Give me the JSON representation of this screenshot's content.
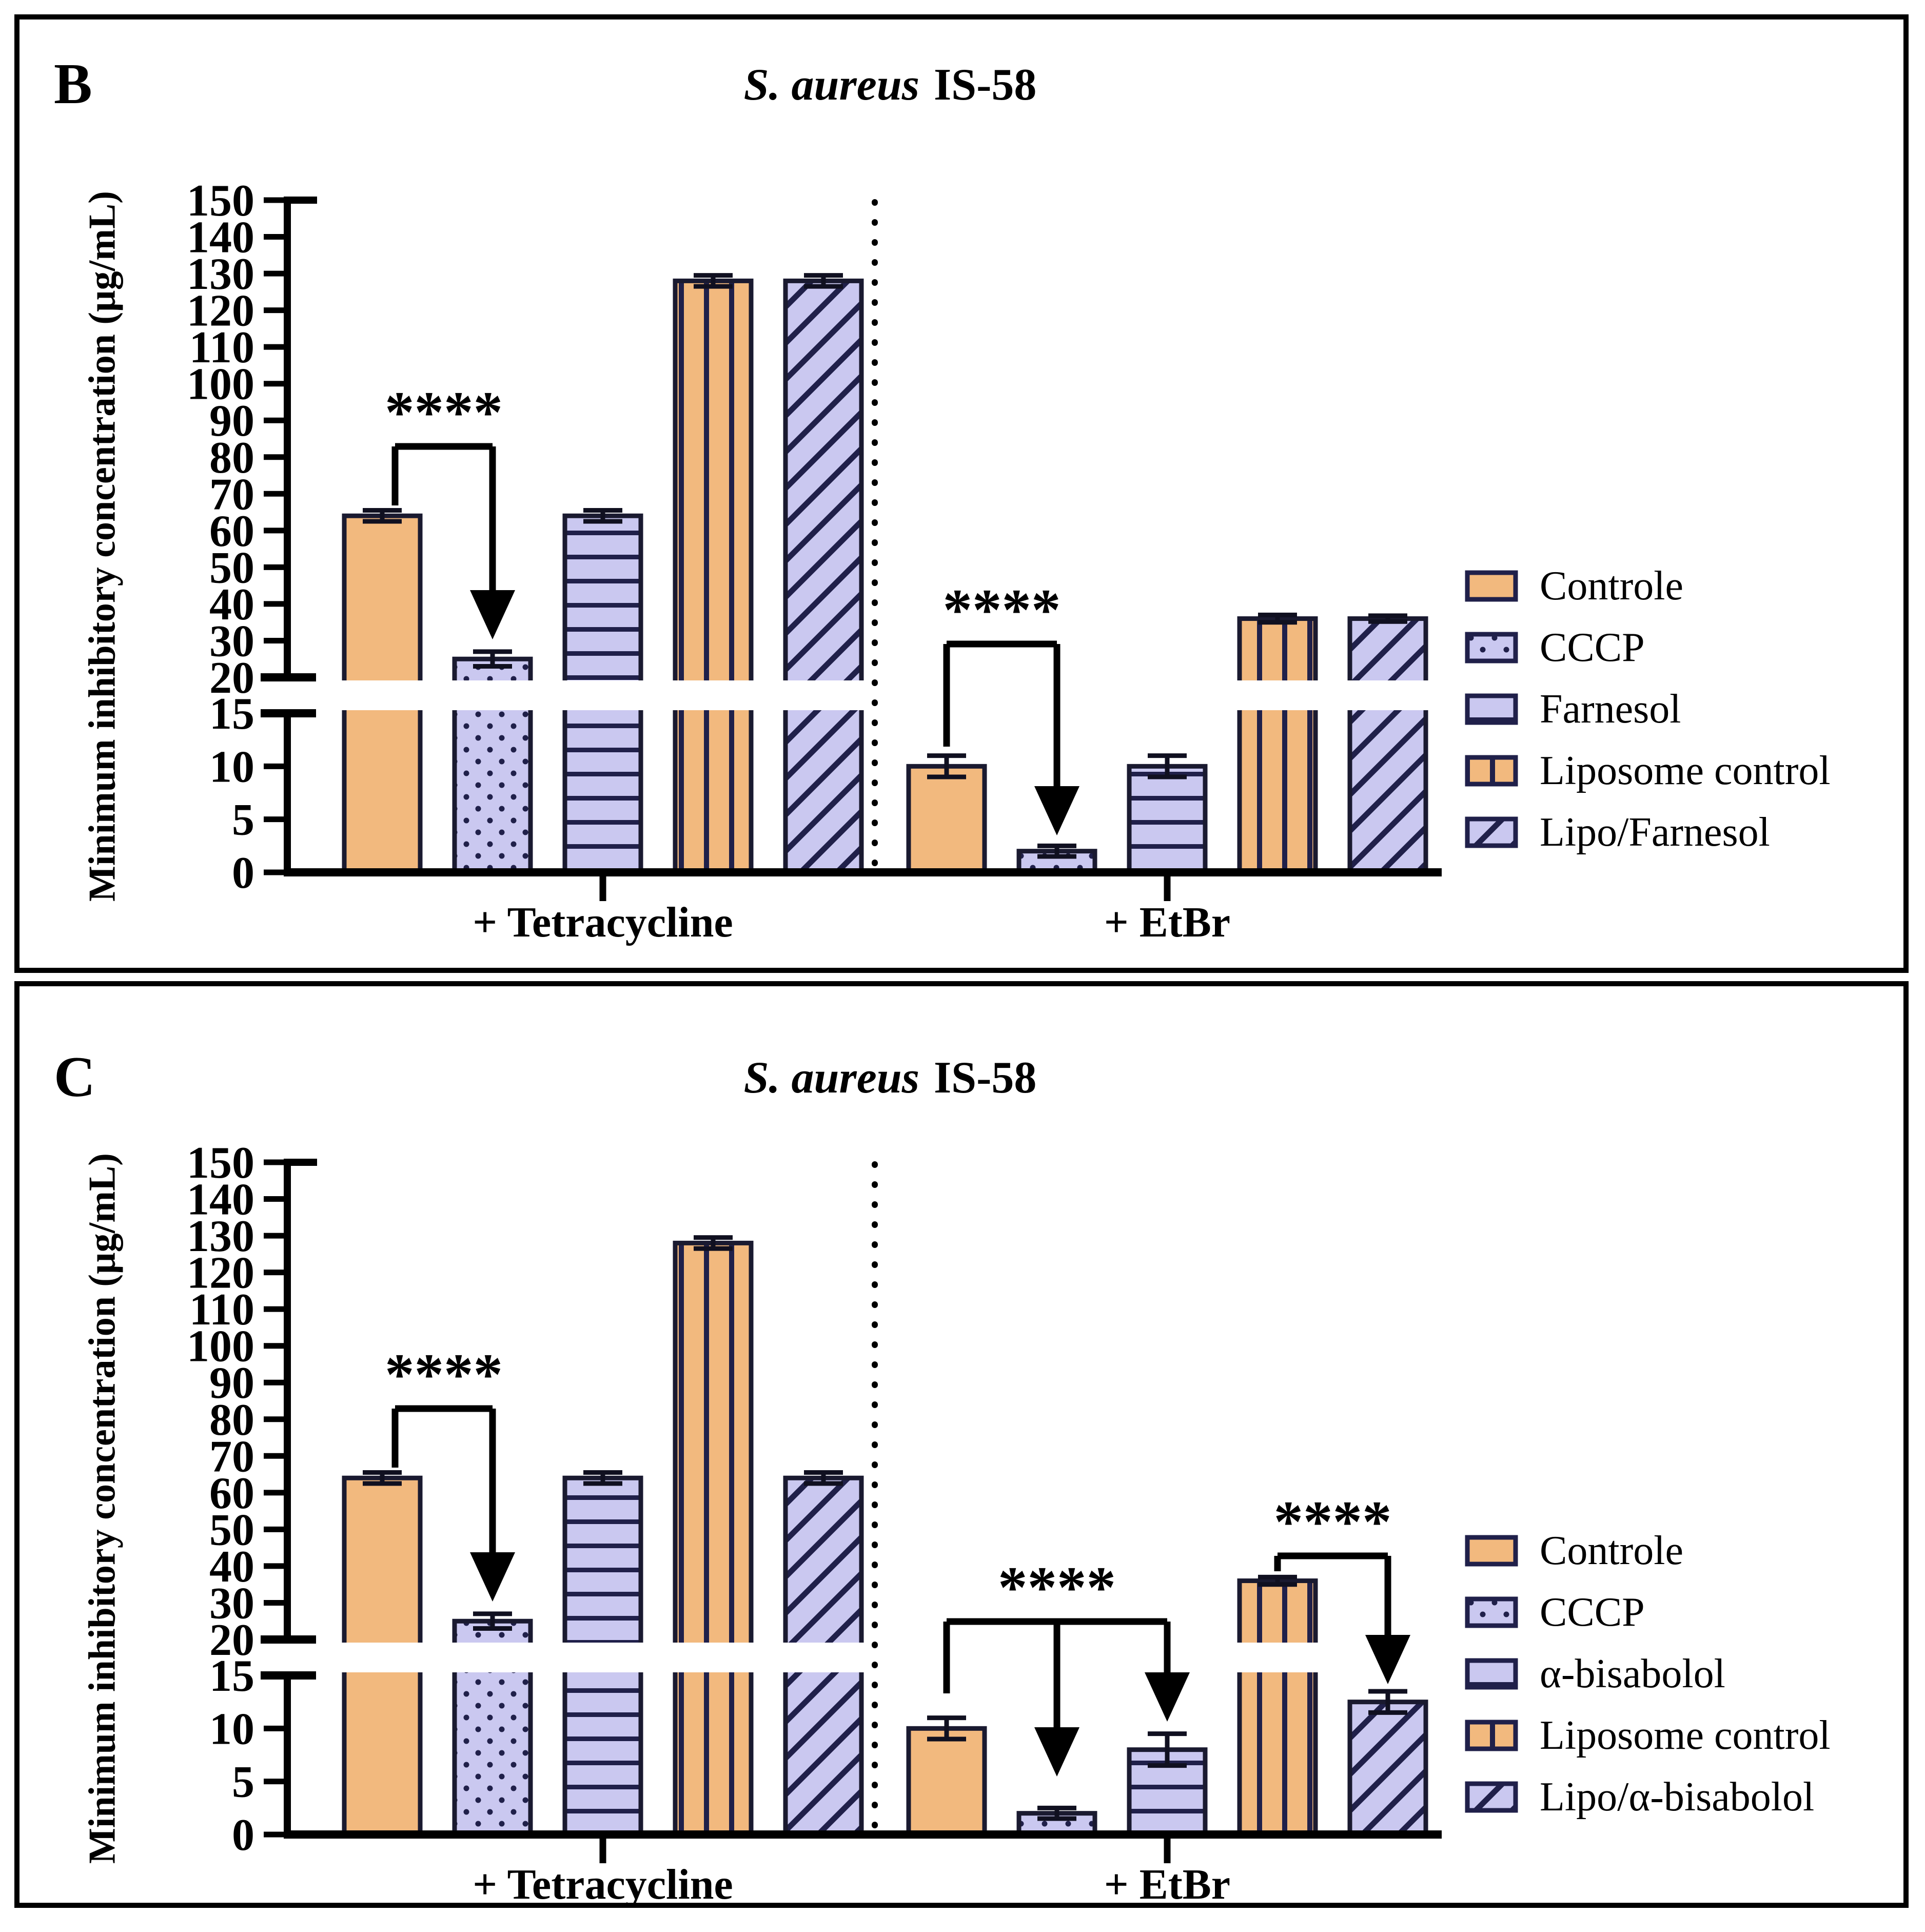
{
  "figure": {
    "panel_b_letter": "B",
    "panel_c_letter": "C"
  },
  "colors": {
    "orange": "#F2B97E",
    "purple": "#CAC8F0",
    "pattern_ink": "#20204A",
    "bar_outline": "#1A1A30",
    "axis_black": "#000000",
    "background": "#FFFFFF"
  },
  "chart_data": [
    {
      "panel_label": "B",
      "type": "bar",
      "title": "S. aureus IS-58",
      "title_italic": "S. aureus",
      "title_rest": "IS-58",
      "ylabel": "Minimum inhibitory concentration (µg/mL)",
      "y_axis": {
        "upper_ticks": [
          150,
          140,
          130,
          120,
          110,
          100,
          90,
          80,
          70,
          60,
          50,
          40,
          30,
          20
        ],
        "lower_ticks": [
          15,
          10,
          5,
          0
        ],
        "break_between": [
          15,
          20
        ],
        "ylim_segments": [
          [
            0,
            15
          ],
          [
            20,
            150
          ]
        ],
        "grid": false
      },
      "categories": [
        "+ Tetracycline",
        "+ EtBr"
      ],
      "series": [
        {
          "name": "Controle",
          "pattern": "solid-orange",
          "values": [
            64,
            10
          ],
          "errors": [
            1.5,
            1
          ]
        },
        {
          "name": "CCCP",
          "pattern": "dots-purple",
          "values": [
            25,
            2
          ],
          "errors": [
            2,
            0.5
          ]
        },
        {
          "name": "Farnesol",
          "pattern": "hlines-purple",
          "values": [
            64,
            10
          ],
          "errors": [
            1.5,
            1
          ]
        },
        {
          "name": "Liposome control",
          "pattern": "vlines-orange",
          "values": [
            128,
            36
          ],
          "errors": [
            1.5,
            1
          ]
        },
        {
          "name": "Lipo/Farnesol",
          "pattern": "diag-purple",
          "values": [
            128,
            36
          ],
          "errors": [
            1.5,
            0.8
          ]
        }
      ],
      "legend_position": "right",
      "significance": [
        {
          "stars": "****",
          "group": "+ Tetracycline",
          "from": "Controle",
          "to": [
            "CCCP"
          ],
          "hline": {
            "x1": 770,
            "x2": 960,
            "y": 870
          },
          "drop_to": 985,
          "arrows": [
            {
              "x": 960,
              "tip": 1246
            }
          ]
        },
        {
          "stars": "****",
          "group": "+ EtBr",
          "from": "Controle",
          "to": [
            "CCCP"
          ],
          "hline": {
            "x1": 1845,
            "x2": 2060,
            "y": 1255
          },
          "drop_to": 1455,
          "arrows": [
            {
              "x": 2060,
              "tip": 1628
            }
          ]
        }
      ]
    },
    {
      "panel_label": "C",
      "type": "bar",
      "title": "S. aureus IS-58",
      "title_italic": "S. aureus",
      "title_rest": "IS-58",
      "ylabel": "Minimum inhibitory concentration (µg/mL)",
      "y_axis": {
        "upper_ticks": [
          150,
          140,
          130,
          120,
          110,
          100,
          90,
          80,
          70,
          60,
          50,
          40,
          30,
          20
        ],
        "lower_ticks": [
          15,
          10,
          5,
          0
        ],
        "break_between": [
          15,
          20
        ],
        "ylim_segments": [
          [
            0,
            15
          ],
          [
            20,
            150
          ]
        ],
        "grid": false
      },
      "categories": [
        "+ Tetracycline",
        "+ EtBr"
      ],
      "series": [
        {
          "name": "Controle",
          "pattern": "solid-orange",
          "values": [
            64,
            10
          ],
          "errors": [
            1.5,
            1
          ]
        },
        {
          "name": "CCCP",
          "pattern": "dots-purple",
          "values": [
            25,
            2
          ],
          "errors": [
            2,
            0.5
          ]
        },
        {
          "name": "α-bisabolol",
          "pattern": "hlines-purple",
          "values": [
            64,
            8
          ],
          "errors": [
            1.5,
            1.5
          ]
        },
        {
          "name": "Liposome control",
          "pattern": "vlines-orange",
          "values": [
            128,
            36
          ],
          "errors": [
            1.5,
            1
          ]
        },
        {
          "name": "Lipo/α-bisabolol",
          "pattern": "diag-purple",
          "values": [
            64,
            12.5
          ],
          "errors": [
            1.5,
            1
          ]
        }
      ],
      "legend_position": "right",
      "significance": [
        {
          "stars": "****",
          "group": "+ Tetracycline",
          "from": "Controle",
          "to": [
            "CCCP"
          ],
          "hline": {
            "x1": 770,
            "x2": 960,
            "y": 2745
          },
          "drop_to": 2860,
          "arrows": [
            {
              "x": 960,
              "tip": 3121
            }
          ]
        },
        {
          "stars": "****",
          "group": "+ EtBr",
          "from": "Controle",
          "to": [
            "CCCP",
            "α-bisabolol"
          ],
          "hline": {
            "x1": 1845,
            "x2": 2275,
            "y": 3160
          },
          "drop_to": 3300,
          "arrows": [
            {
              "x": 2060,
              "tip": 3462
            },
            {
              "x": 2275,
              "tip": 3355
            }
          ]
        },
        {
          "stars": "****",
          "group": "+ EtBr",
          "from": "Liposome control",
          "to": [
            "Lipo/α-bisabolol"
          ],
          "hline": {
            "x1": 2490,
            "x2": 2705,
            "y": 3032
          },
          "drop_to": 3062,
          "arrows": [
            {
              "x": 2705,
              "tip": 3282
            }
          ]
        }
      ]
    }
  ]
}
